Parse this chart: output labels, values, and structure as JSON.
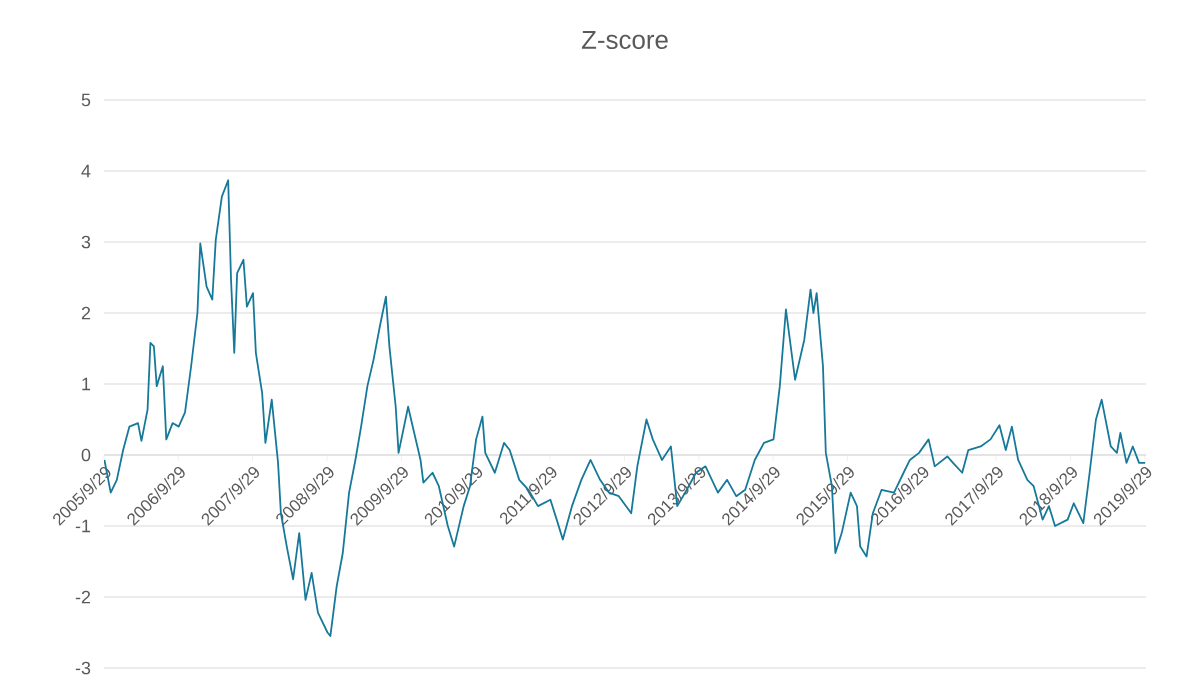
{
  "chart_data": {
    "type": "line",
    "title": "Z-score",
    "color": "#17799a",
    "grid": "y",
    "xlim": [
      "2005-09-29",
      "2019-10-05"
    ],
    "ylim": [
      -3,
      5
    ],
    "yticks": [
      -3,
      -2,
      -1,
      0,
      1,
      2,
      3,
      4,
      5
    ],
    "xticks": [
      {
        "value": "2005-09-29",
        "label": "2005/9/29"
      },
      {
        "value": "2006-09-29",
        "label": "2006/9/29"
      },
      {
        "value": "2007-09-29",
        "label": "2007/9/29"
      },
      {
        "value": "2008-09-29",
        "label": "2008/9/29"
      },
      {
        "value": "2009-09-29",
        "label": "2009/9/29"
      },
      {
        "value": "2010-09-29",
        "label": "2010/9/29"
      },
      {
        "value": "2011-09-29",
        "label": "2011/9/29"
      },
      {
        "value": "2012-09-29",
        "label": "2012/9/29"
      },
      {
        "value": "2013-09-29",
        "label": "2013/9/29"
      },
      {
        "value": "2014-09-29",
        "label": "2014/9/29"
      },
      {
        "value": "2015-09-29",
        "label": "2015/9/29"
      },
      {
        "value": "2016-09-29",
        "label": "2016/9/29"
      },
      {
        "value": "2017-09-29",
        "label": "2017/9/29"
      },
      {
        "value": "2018-09-29",
        "label": "2018/9/29"
      },
      {
        "value": "2019-09-29",
        "label": "2019/9/29"
      }
    ],
    "x": [
      "2005-10-01",
      "2005-11-01",
      "2005-12-01",
      "2006-01-01",
      "2006-02-01",
      "2006-03-15",
      "2006-04-01",
      "2006-05-01",
      "2006-05-15",
      "2006-06-01",
      "2006-06-15",
      "2006-07-15",
      "2006-08-01",
      "2006-09-01",
      "2006-10-01",
      "2006-11-01",
      "2006-12-01",
      "2007-01-01",
      "2007-01-15",
      "2007-02-15",
      "2007-03-15",
      "2007-04-01",
      "2007-05-01",
      "2007-06-01",
      "2007-06-15",
      "2007-07-01",
      "2007-07-15",
      "2007-08-15",
      "2007-09-01",
      "2007-10-01",
      "2007-10-15",
      "2007-11-15",
      "2007-12-01",
      "2008-01-01",
      "2008-02-01",
      "2008-02-15",
      "2008-03-15",
      "2008-04-15",
      "2008-05-15",
      "2008-06-15",
      "2008-07-15",
      "2008-08-15",
      "2008-10-01",
      "2008-10-15",
      "2008-11-15",
      "2008-12-15",
      "2009-01-15",
      "2009-02-15",
      "2009-03-15",
      "2009-04-15",
      "2009-05-15",
      "2009-06-15",
      "2009-07-15",
      "2009-08-01",
      "2009-09-01",
      "2009-09-15",
      "2009-11-01",
      "2009-12-01",
      "2010-01-01",
      "2010-01-15",
      "2010-03-01",
      "2010-04-01",
      "2010-05-15",
      "2010-06-15",
      "2010-08-01",
      "2010-09-01",
      "2010-10-01",
      "2010-11-01",
      "2010-11-15",
      "2011-01-01",
      "2011-02-15",
      "2011-03-15",
      "2011-05-01",
      "2011-06-15",
      "2011-08-01",
      "2011-10-01",
      "2011-11-01",
      "2011-12-01",
      "2012-01-15",
      "2012-03-01",
      "2012-04-15",
      "2012-06-01",
      "2012-07-15",
      "2012-09-01",
      "2012-11-01",
      "2012-12-01",
      "2013-01-15",
      "2013-02-15",
      "2013-04-01",
      "2013-05-15",
      "2013-06-15",
      "2013-08-01",
      "2013-09-15",
      "2013-11-01",
      "2014-01-01",
      "2014-02-15",
      "2014-04-01",
      "2014-05-15",
      "2014-07-01",
      "2014-08-15",
      "2014-10-01",
      "2014-11-01",
      "2014-12-01",
      "2015-01-15",
      "2015-03-01",
      "2015-04-01",
      "2015-04-15",
      "2015-05-01",
      "2015-06-01",
      "2015-06-15",
      "2015-07-15",
      "2015-08-01",
      "2015-09-01",
      "2015-10-15",
      "2015-11-15",
      "2015-12-01",
      "2016-01-01",
      "2016-02-01",
      "2016-03-15",
      "2016-05-15",
      "2016-07-01",
      "2016-08-01",
      "2016-09-15",
      "2016-11-01",
      "2016-12-01",
      "2017-02-01",
      "2017-03-01",
      "2017-04-15",
      "2017-05-15",
      "2017-07-15",
      "2017-09-01",
      "2017-10-15",
      "2017-11-15",
      "2017-12-15",
      "2018-01-15",
      "2018-03-01",
      "2018-04-01",
      "2018-05-15",
      "2018-06-15",
      "2018-07-15",
      "2018-09-15",
      "2018-10-15",
      "2018-12-01",
      "2019-01-01",
      "2019-02-01",
      "2019-03-01",
      "2019-04-15",
      "2019-05-15",
      "2019-06-01",
      "2019-07-01",
      "2019-08-01",
      "2019-09-01",
      "2019-10-01"
    ],
    "values": [
      -0.07,
      -0.53,
      -0.35,
      0.07,
      0.4,
      0.45,
      0.2,
      0.64,
      1.58,
      1.53,
      0.97,
      1.25,
      0.22,
      0.45,
      0.4,
      0.6,
      1.25,
      2.0,
      2.98,
      2.37,
      2.19,
      3.03,
      3.64,
      3.87,
      2.47,
      1.44,
      2.56,
      2.75,
      2.09,
      2.28,
      1.44,
      0.87,
      0.17,
      0.78,
      -0.11,
      -0.82,
      -1.29,
      -1.75,
      -1.1,
      -2.04,
      -1.66,
      -2.22,
      -2.5,
      -2.55,
      -1.85,
      -1.38,
      -0.53,
      -0.07,
      0.4,
      0.97,
      1.34,
      1.81,
      2.23,
      1.53,
      0.68,
      0.03,
      0.68,
      0.31,
      -0.07,
      -0.39,
      -0.25,
      -0.44,
      -1.0,
      -1.29,
      -0.72,
      -0.44,
      0.22,
      0.54,
      0.03,
      -0.25,
      0.17,
      0.07,
      -0.35,
      -0.49,
      -0.72,
      -0.63,
      -0.91,
      -1.19,
      -0.72,
      -0.35,
      -0.07,
      -0.35,
      -0.53,
      -0.58,
      -0.82,
      -0.16,
      0.5,
      0.22,
      -0.07,
      0.12,
      -0.72,
      -0.49,
      -0.25,
      -0.16,
      -0.53,
      -0.35,
      -0.58,
      -0.49,
      -0.07,
      0.17,
      0.22,
      0.97,
      2.05,
      1.06,
      1.62,
      2.33,
      2.0,
      2.28,
      1.25,
      0.03,
      -0.44,
      -1.38,
      -1.1,
      -0.53,
      -0.72,
      -1.29,
      -1.43,
      -0.82,
      -0.49,
      -0.53,
      -0.25,
      -0.07,
      0.03,
      0.22,
      -0.16,
      -0.02,
      -0.11,
      -0.25,
      0.07,
      0.12,
      0.22,
      0.42,
      0.07,
      0.4,
      -0.07,
      -0.35,
      -0.44,
      -0.91,
      -0.72,
      -1.0,
      -0.91,
      -0.68,
      -0.96,
      -0.25,
      0.5,
      0.78,
      0.12,
      0.03,
      0.31,
      -0.11,
      0.12,
      -0.11,
      -0.11
    ]
  }
}
